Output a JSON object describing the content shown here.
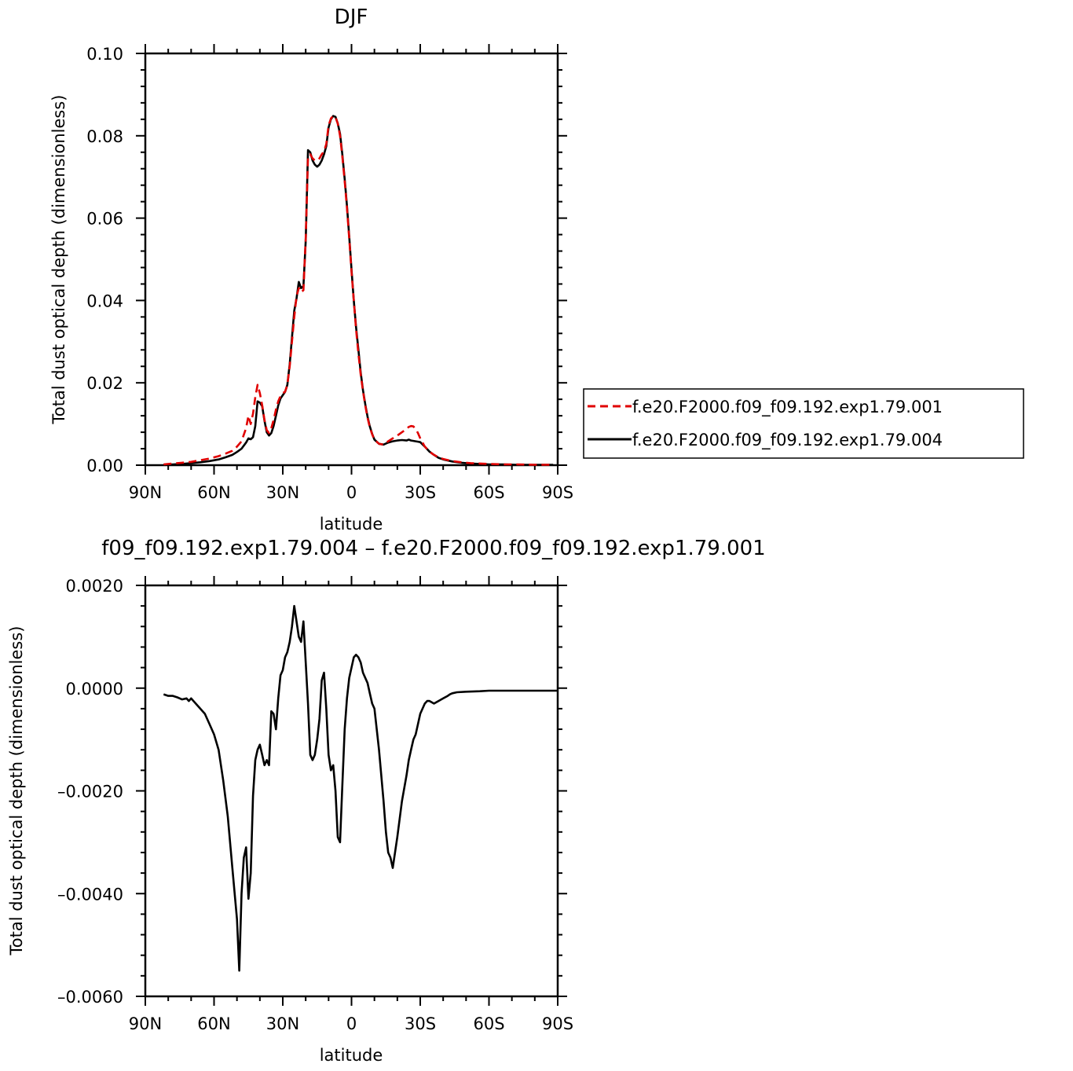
{
  "chart_data": [
    {
      "type": "line",
      "title": "DJF",
      "xlabel": "latitude",
      "ylabel": "Total dust optical depth (dimensionless)",
      "xlim": [
        90,
        -90
      ],
      "ylim": [
        0,
        0.1
      ],
      "xticks": [
        90,
        60,
        30,
        0,
        -30,
        -60,
        -90
      ],
      "xtick_labels": [
        "90N",
        "60N",
        "30N",
        "0",
        "30S",
        "60S",
        "90S"
      ],
      "yticks": [
        0,
        0.02,
        0.04,
        0.06,
        0.08,
        0.1
      ],
      "ytick_labels": [
        "0.00",
        "0.02",
        "0.04",
        "0.06",
        "0.08",
        "0.10"
      ],
      "legend_position": "right",
      "series": [
        {
          "name": "f.e20.F2000.f09_f09.192.exp1.79.001",
          "color": "#e00000",
          "dash": "dashed",
          "x": [
            82,
            78,
            74,
            70,
            66,
            62,
            58,
            55,
            52,
            50,
            48,
            46,
            45,
            44,
            43,
            42,
            41,
            40,
            39,
            38,
            37,
            36,
            35,
            34,
            33,
            32,
            31,
            30,
            29,
            28,
            27,
            26,
            25,
            24,
            23,
            22,
            21,
            20,
            19,
            18,
            17,
            16,
            15,
            14,
            13,
            12,
            11,
            10,
            9,
            8,
            7,
            6,
            5,
            4,
            3,
            2,
            1,
            0,
            -1,
            -2,
            -3,
            -4,
            -5,
            -6,
            -7,
            -8,
            -9,
            -10,
            -12,
            -14,
            -16,
            -18,
            -20,
            -22,
            -24,
            -25,
            -26,
            -27,
            -28,
            -29,
            -30,
            -32,
            -34,
            -36,
            -38,
            -40,
            -44,
            -48,
            -52,
            -56,
            -60,
            -66,
            -72,
            -80,
            -88
          ],
          "y": [
            0.0002,
            0.0004,
            0.0006,
            0.0008,
            0.0012,
            0.0016,
            0.0022,
            0.0028,
            0.0035,
            0.0045,
            0.0058,
            0.009,
            0.012,
            0.01,
            0.0125,
            0.0165,
            0.0195,
            0.0175,
            0.0145,
            0.011,
            0.0085,
            0.0078,
            0.009,
            0.011,
            0.0135,
            0.0155,
            0.0168,
            0.0175,
            0.0178,
            0.0195,
            0.024,
            0.03,
            0.036,
            0.041,
            0.043,
            0.042,
            0.0425,
            0.055,
            0.075,
            0.0755,
            0.0745,
            0.074,
            0.074,
            0.0745,
            0.0755,
            0.0762,
            0.078,
            0.0825,
            0.0842,
            0.0848,
            0.0845,
            0.083,
            0.08,
            0.075,
            0.069,
            0.0625,
            0.055,
            0.047,
            0.04,
            0.033,
            0.027,
            0.022,
            0.018,
            0.0145,
            0.0115,
            0.0092,
            0.0075,
            0.0062,
            0.0052,
            0.005,
            0.0058,
            0.0065,
            0.0072,
            0.008,
            0.0088,
            0.0093,
            0.0095,
            0.0094,
            0.0088,
            0.0078,
            0.0065,
            0.0045,
            0.0033,
            0.0025,
            0.0019,
            0.0015,
            0.001,
            0.0007,
            0.0005,
            0.0004,
            0.0003,
            0.0002,
            0.0002,
            0.0001,
            0.0001
          ]
        },
        {
          "name": "f.e20.F2000.f09_f09.192.exp1.79.004",
          "color": "#000000",
          "dash": "solid",
          "x": [
            82,
            78,
            74,
            70,
            66,
            62,
            58,
            55,
            52,
            50,
            48,
            46,
            45,
            44,
            43,
            42,
            41,
            40,
            39,
            38,
            37,
            36,
            35,
            34,
            33,
            32,
            31,
            30,
            29,
            28,
            27,
            26,
            25,
            24,
            23,
            22,
            21,
            20,
            19,
            18,
            17,
            16,
            15,
            14,
            13,
            12,
            11,
            10,
            9,
            8,
            7,
            6,
            5,
            4,
            3,
            2,
            1,
            0,
            -1,
            -2,
            -3,
            -4,
            -5,
            -6,
            -7,
            -8,
            -9,
            -10,
            -12,
            -14,
            -16,
            -18,
            -20,
            -22,
            -24,
            -25,
            -26,
            -27,
            -28,
            -29,
            -30,
            -32,
            -34,
            -36,
            -38,
            -40,
            -44,
            -48,
            -52,
            -56,
            -60,
            -66,
            -72,
            -80,
            -88
          ],
          "y": [
            0.0001,
            0.0002,
            0.0003,
            0.0005,
            0.0007,
            0.001,
            0.0014,
            0.0019,
            0.0025,
            0.0032,
            0.004,
            0.0055,
            0.0065,
            0.0063,
            0.0068,
            0.0095,
            0.0155,
            0.0152,
            0.0143,
            0.0108,
            0.008,
            0.0072,
            0.0078,
            0.0095,
            0.012,
            0.0145,
            0.0162,
            0.017,
            0.0178,
            0.0195,
            0.0245,
            0.031,
            0.0375,
            0.0405,
            0.0445,
            0.043,
            0.0435,
            0.0545,
            0.0765,
            0.076,
            0.074,
            0.073,
            0.0725,
            0.073,
            0.074,
            0.0755,
            0.0775,
            0.082,
            0.084,
            0.0848,
            0.0846,
            0.083,
            0.0805,
            0.0755,
            0.0695,
            0.063,
            0.0555,
            0.0475,
            0.04,
            0.0335,
            0.028,
            0.0225,
            0.0182,
            0.0148,
            0.0118,
            0.0094,
            0.0076,
            0.0062,
            0.0052,
            0.005,
            0.0055,
            0.0058,
            0.006,
            0.0061,
            0.006,
            0.0062,
            0.006,
            0.0059,
            0.0058,
            0.0057,
            0.0056,
            0.0045,
            0.0033,
            0.0025,
            0.0018,
            0.0014,
            0.0009,
            0.0006,
            0.0004,
            0.0003,
            0.0002,
            0.0002,
            0.0001,
            0.0001,
            0.0001
          ]
        }
      ]
    },
    {
      "type": "line",
      "title": "f09_f09.192.exp1.79.004 – f.e20.F2000.f09_f09.192.exp1.79.001",
      "xlabel": "latitude",
      "ylabel": "Total dust optical depth (dimensionless)",
      "xlim": [
        90,
        -90
      ],
      "ylim": [
        -0.006,
        0.002
      ],
      "xticks": [
        90,
        60,
        30,
        0,
        -30,
        -60,
        -90
      ],
      "xtick_labels": [
        "90N",
        "60N",
        "30N",
        "0",
        "30S",
        "60S",
        "90S"
      ],
      "yticks": [
        -0.006,
        -0.004,
        -0.002,
        0,
        0.002
      ],
      "ytick_labels": [
        "–0.0060",
        "–0.0040",
        "–0.0020",
        "0.0000",
        "0.0020"
      ],
      "series": [
        {
          "color": "#000000",
          "dash": "solid",
          "x": [
            82,
            80,
            78,
            76,
            75,
            74,
            72,
            71,
            70,
            68,
            67,
            66,
            64,
            62,
            60,
            58,
            56,
            54,
            52,
            50,
            49,
            48,
            47,
            46,
            45,
            44,
            43,
            42,
            41,
            40,
            39,
            38,
            37,
            36,
            35,
            34,
            33,
            32,
            31,
            30,
            29,
            28,
            27,
            26,
            25,
            24,
            23,
            22,
            21,
            20,
            19,
            18,
            17,
            16,
            15,
            14,
            13,
            12,
            11,
            10,
            9,
            8,
            7,
            6,
            5,
            4,
            3,
            2,
            1,
            0,
            -1,
            -2,
            -3,
            -4,
            -5,
            -6,
            -7,
            -8,
            -9,
            -10,
            -12,
            -14,
            -15,
            -16,
            -17,
            -18,
            -20,
            -22,
            -24,
            -25,
            -26,
            -27,
            -28,
            -29,
            -30,
            -31,
            -32,
            -33,
            -34,
            -36,
            -38,
            -40,
            -42,
            -43,
            -44,
            -46,
            -50,
            -56,
            -60,
            -70,
            -80,
            -90
          ],
          "y": [
            -0.00012,
            -0.00015,
            -0.00015,
            -0.00018,
            -0.0002,
            -0.00022,
            -0.0002,
            -0.00025,
            -0.0002,
            -0.0003,
            -0.00035,
            -0.0004,
            -0.0005,
            -0.0007,
            -0.0009,
            -0.0012,
            -0.0018,
            -0.0025,
            -0.0035,
            -0.0045,
            -0.0055,
            -0.004,
            -0.0033,
            -0.0031,
            -0.0041,
            -0.0036,
            -0.0021,
            -0.0014,
            -0.0012,
            -0.0011,
            -0.0013,
            -0.0015,
            -0.0014,
            -0.0015,
            -0.00045,
            -0.0005,
            -0.0008,
            -0.0002,
            0.00025,
            0.00035,
            0.0006,
            0.0007,
            0.0009,
            0.0012,
            0.0016,
            0.0013,
            0.001,
            0.0009,
            0.0013,
            0.0005,
            -0.0003,
            -0.0013,
            -0.0014,
            -0.0013,
            -0.001,
            -0.0006,
            0.00015,
            0.0003,
            -0.0004,
            -0.0013,
            -0.0016,
            -0.0015,
            -0.002,
            -0.0029,
            -0.003,
            -0.0019,
            -0.0008,
            -0.0002,
            0.0002,
            0.0004,
            0.0006,
            0.00065,
            0.0006,
            0.0005,
            0.0003,
            0.0002,
            0.0001,
            -0.0001,
            -0.0003,
            -0.0004,
            -0.0012,
            -0.0022,
            -0.0028,
            -0.0032,
            -0.0033,
            -0.0035,
            -0.0029,
            -0.0022,
            -0.0017,
            -0.0014,
            -0.0012,
            -0.001,
            -0.0009,
            -0.0007,
            -0.0005,
            -0.0004,
            -0.0003,
            -0.00025,
            -0.00025,
            -0.0003,
            -0.00025,
            -0.0002,
            -0.00015,
            -0.00012,
            -0.0001,
            -8e-05,
            -7e-05,
            -6e-05,
            -5e-05,
            -5e-05,
            -5e-05,
            -5e-05
          ]
        }
      ]
    }
  ]
}
